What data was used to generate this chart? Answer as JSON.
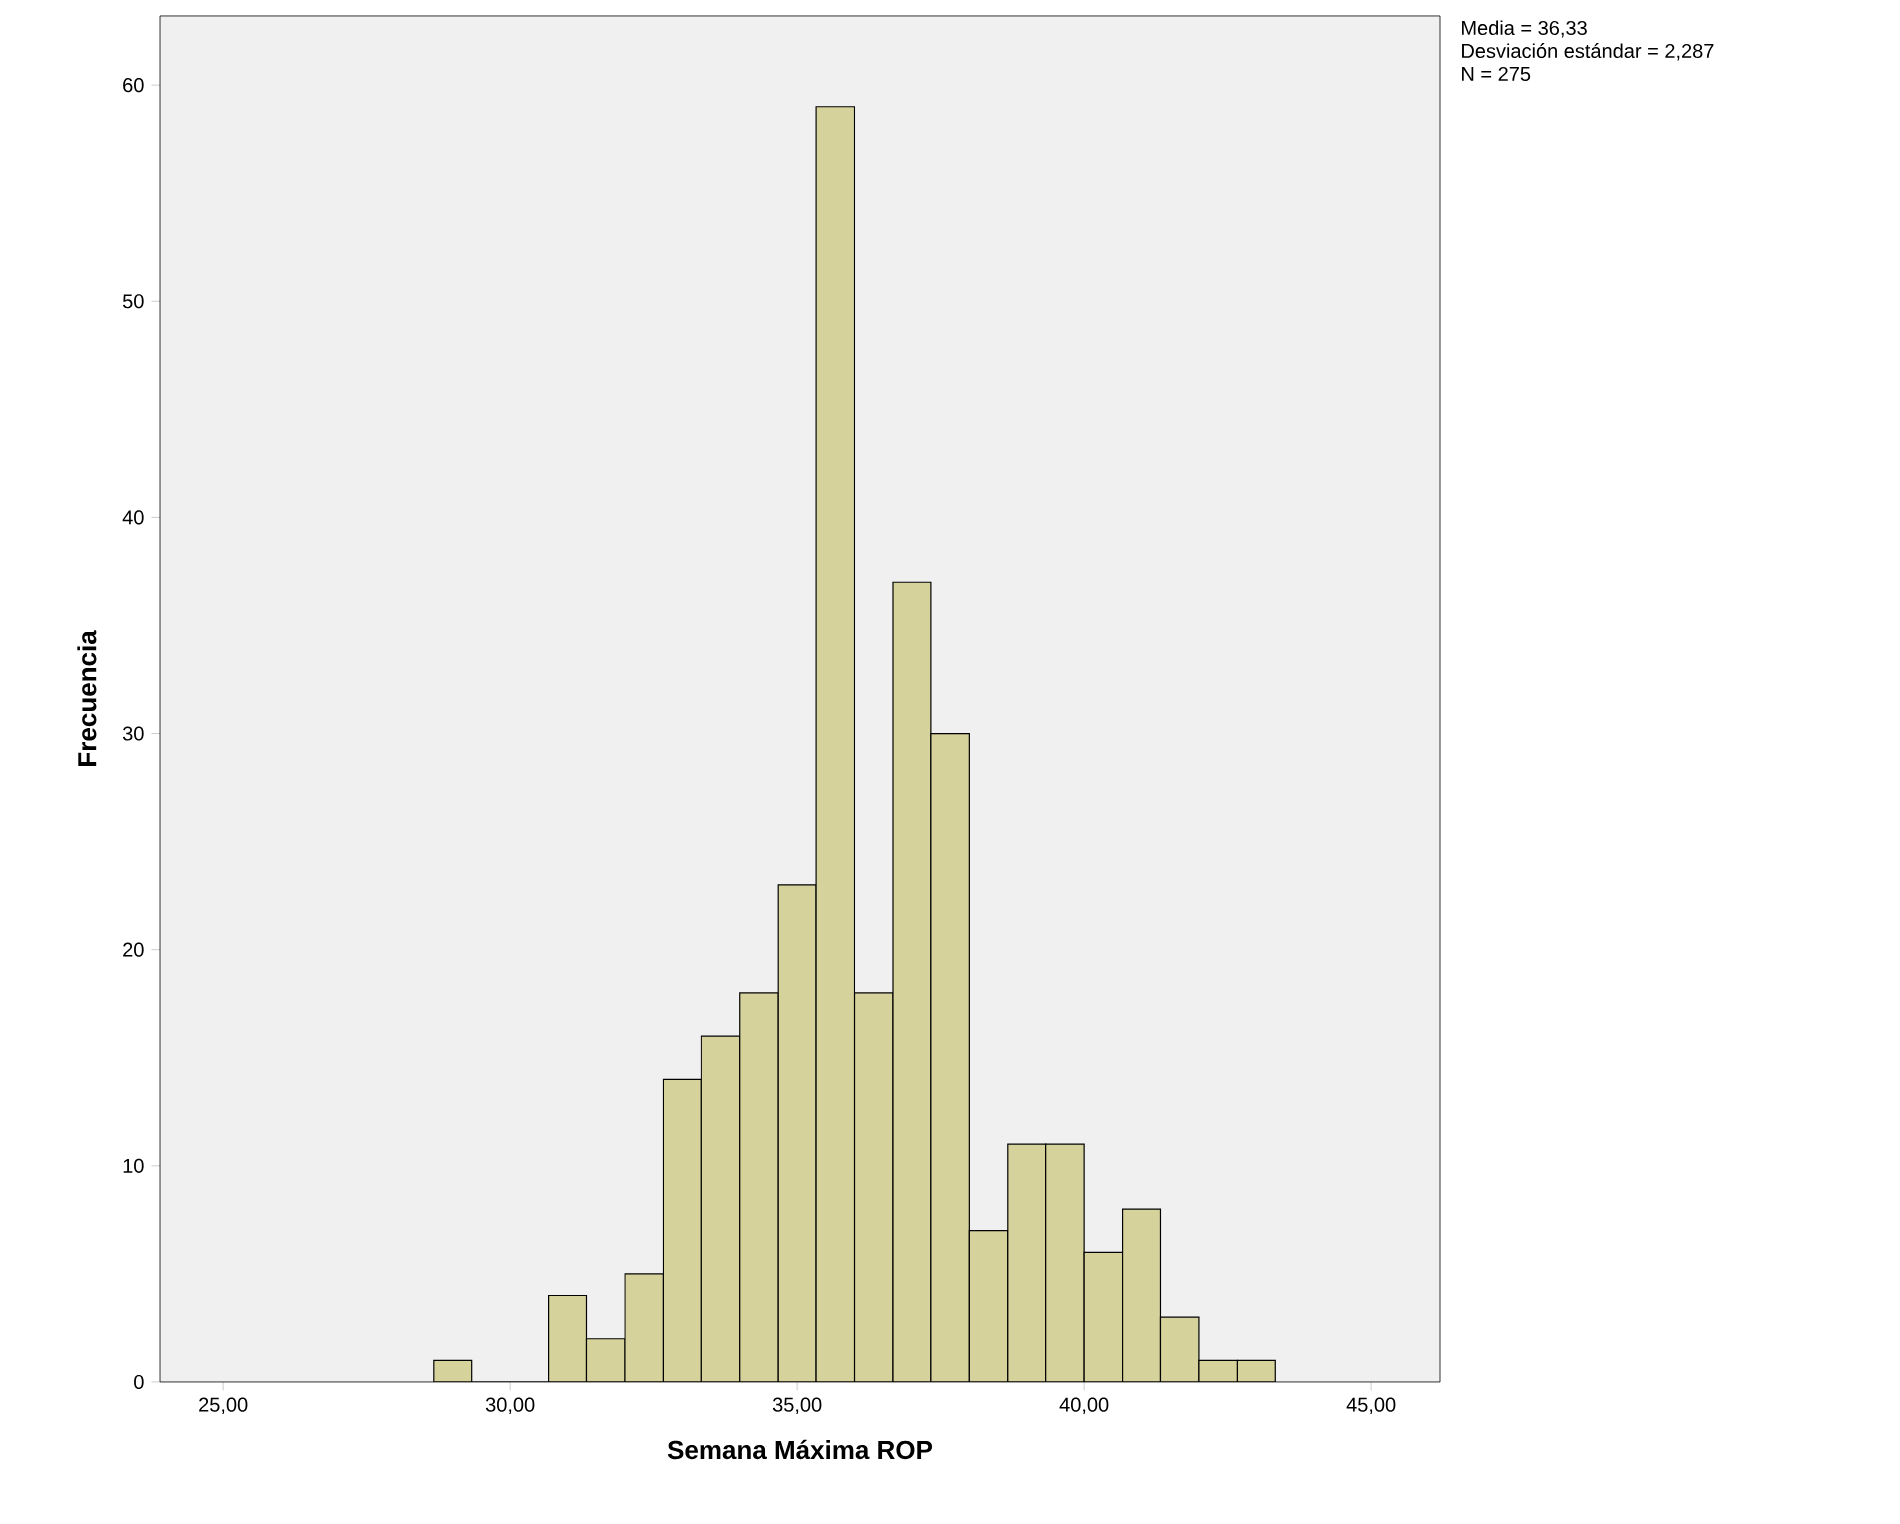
{
  "chart_data": {
    "type": "histogram",
    "xlabel": "Semana Máxima ROP",
    "ylabel": "Frecuencia",
    "annotations": [
      "Media = 36,33",
      "Desviación estándar = 2,287",
      "N = 275"
    ],
    "bins": [
      28.67,
      29.33,
      30.67,
      31.33,
      32,
      32.67,
      33.33,
      34,
      34.67,
      35.33,
      36,
      36.67,
      37.33,
      38,
      38.67,
      39.33,
      40,
      40.67,
      41.33,
      42,
      42.67,
      43.33
    ],
    "values": [
      1,
      0,
      4,
      2,
      5,
      14,
      16,
      18,
      23,
      59,
      18,
      37,
      30,
      7,
      11,
      11,
      6,
      8,
      3,
      1,
      1
    ],
    "color": "#d6d29c",
    "xlim": [
      23.9,
      46.2
    ],
    "ylim": [
      0,
      63.2
    ],
    "xticks": [
      {
        "value": 25,
        "label": "25,00"
      },
      {
        "value": 30,
        "label": "30,00"
      },
      {
        "value": 35,
        "label": "35,00"
      },
      {
        "value": 40,
        "label": "40,00"
      },
      {
        "value": 45,
        "label": "45,00"
      }
    ],
    "yticks": [
      0,
      10,
      20,
      30,
      40,
      50,
      60
    ],
    "grid": false
  }
}
